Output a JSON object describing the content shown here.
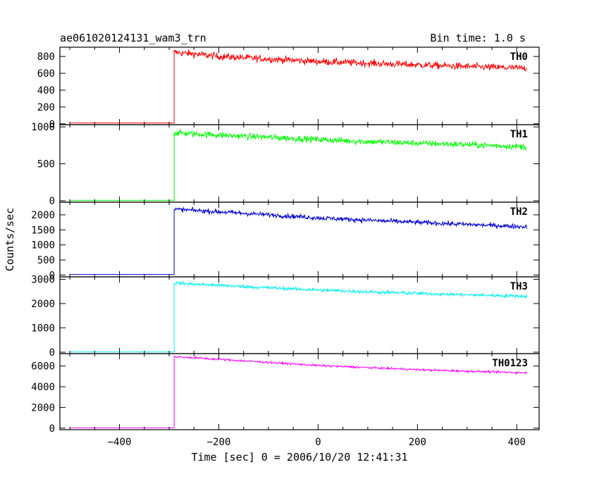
{
  "header": {
    "left": "ae061020124131_wam3_trn",
    "right": "Bin time: 1.0 s"
  },
  "chart_data": {
    "type": "line",
    "title": "ae061020124131_wam3_trn",
    "subtitle": "Bin time: 1.0 s",
    "xlabel": "Time [sec] 0 = 2006/10/20 12:41:31",
    "ylabel": "Counts/sec",
    "xlim": [
      -520,
      445
    ],
    "x_ticks": [
      -400,
      -200,
      0,
      200,
      400
    ],
    "x_tick_labels": [
      "−400",
      "−200",
      "0",
      "200",
      "400"
    ],
    "grid": false,
    "legend": "none",
    "data_start": -500,
    "data_end": 420,
    "onset_time": -290,
    "panels": [
      {
        "name": "TH0",
        "color": "#ff0000",
        "ylim": [
          -10,
          910
        ],
        "y_ticks": [
          0,
          200,
          400,
          600,
          800
        ],
        "y_tick_labels": [
          "0",
          "200",
          "400",
          "600",
          "800"
        ],
        "baseline": 10,
        "x": [
          -290,
          -250,
          -200,
          -100,
          0,
          100,
          200,
          300,
          420
        ],
        "y": [
          850,
          830,
          800,
          770,
          740,
          720,
          700,
          680,
          660
        ],
        "noise": 30
      },
      {
        "name": "TH1",
        "color": "#00ff00",
        "ylim": [
          -20,
          1030
        ],
        "y_ticks": [
          0,
          500,
          1000
        ],
        "y_tick_labels": [
          "0",
          "500",
          "1000"
        ],
        "baseline": 5,
        "x": [
          -290,
          -250,
          -200,
          -100,
          0,
          100,
          200,
          300,
          420
        ],
        "y": [
          920,
          905,
          890,
          860,
          830,
          800,
          780,
          760,
          730
        ],
        "noise": 30
      },
      {
        "name": "TH2",
        "color": "#0000cc",
        "ylim": [
          -60,
          2420
        ],
        "y_ticks": [
          0,
          500,
          1000,
          1500,
          2000
        ],
        "y_tick_labels": [
          "0",
          "500",
          "1000",
          "1500",
          "2000"
        ],
        "baseline": 20,
        "x": [
          -290,
          -250,
          -200,
          -100,
          0,
          100,
          200,
          300,
          420
        ],
        "y": [
          2180,
          2150,
          2100,
          2000,
          1900,
          1820,
          1750,
          1680,
          1600
        ],
        "noise": 55
      },
      {
        "name": "TH3",
        "color": "#00eeee",
        "ylim": [
          -60,
          3100
        ],
        "y_ticks": [
          0,
          1000,
          2000,
          3000
        ],
        "y_tick_labels": [
          "0",
          "1000",
          "2000",
          "3000"
        ],
        "baseline": 10,
        "x": [
          -290,
          -250,
          -200,
          -100,
          0,
          100,
          200,
          300,
          420
        ],
        "y": [
          2850,
          2800,
          2750,
          2650,
          2560,
          2480,
          2420,
          2360,
          2300
        ],
        "noise": 50
      },
      {
        "name": "TH0123",
        "color": "#ff00ff",
        "ylim": [
          -150,
          7200
        ],
        "y_ticks": [
          0,
          2000,
          4000,
          6000
        ],
        "y_tick_labels": [
          "0",
          "2000",
          "4000",
          "6000"
        ],
        "baseline": 30,
        "x": [
          -290,
          -250,
          -200,
          -100,
          0,
          100,
          200,
          300,
          420
        ],
        "y": [
          6900,
          6800,
          6650,
          6350,
          6050,
          5850,
          5650,
          5500,
          5350
        ],
        "noise": 70
      }
    ]
  }
}
